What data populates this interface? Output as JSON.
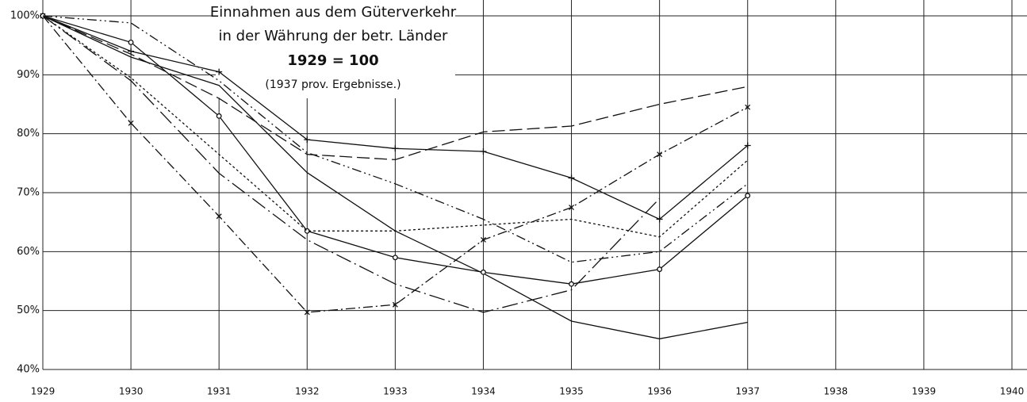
{
  "chart_data": {
    "type": "line",
    "title": "Einnahmen aus dem Güterverkehr",
    "subtitle": "in der Währung der betr. Länder",
    "annotations": [
      "1929 = 100",
      "(1937 prov. Ergebnisse.)"
    ],
    "x": [
      1929,
      1930,
      1931,
      1932,
      1933,
      1934,
      1935,
      1936,
      1937
    ],
    "xlim": [
      1929,
      1940
    ],
    "xticks": [
      1929,
      1930,
      1931,
      1932,
      1933,
      1934,
      1935,
      1936,
      1937,
      1938,
      1939,
      1940
    ],
    "ylim": [
      40,
      100
    ],
    "yticks": [
      {
        "value": 40,
        "label": "40%"
      },
      {
        "value": 50,
        "label": "50%"
      },
      {
        "value": 60,
        "label": "60%"
      },
      {
        "value": 70,
        "label": "70%"
      },
      {
        "value": 80,
        "label": "80%"
      },
      {
        "value": 90,
        "label": "90%"
      },
      {
        "value": 100,
        "label": "100%"
      }
    ],
    "grid": true,
    "series": [
      {
        "color": "#111",
        "dash": "solid",
        "marker": "none",
        "values": [
          100,
          93,
          88.2,
          73.4,
          63.5,
          56.3,
          48.2,
          45.2,
          48
        ]
      },
      {
        "color": "#111",
        "dash": "long-dash",
        "marker": "none",
        "values": [
          100,
          93.5,
          86,
          76.5,
          75.6,
          80.3,
          81.3,
          85,
          88
        ]
      },
      {
        "color": "#111",
        "dash": "solid",
        "marker": "plus",
        "values": [
          100,
          94,
          90.5,
          79,
          77.5,
          77,
          72.5,
          65.5,
          78
        ]
      },
      {
        "color": "#111",
        "dash": "dash-dot",
        "marker": "cross",
        "values": [
          100,
          81.8,
          66,
          49.7,
          51,
          62,
          67.5,
          76.5,
          84.5
        ]
      },
      {
        "color": "#111",
        "dash": "solid",
        "marker": "circle",
        "values": [
          100,
          95.5,
          83,
          63.5,
          59,
          56.5,
          54.5,
          57,
          69.5
        ]
      },
      {
        "color": "#111",
        "dash": "dotted",
        "marker": "none",
        "values": [
          100,
          89.5,
          76.5,
          63.5,
          63.5,
          64.5,
          65.5,
          62.5,
          75.5
        ]
      },
      {
        "color": "#111",
        "dash": "dash-dot-dot",
        "marker": "none",
        "values": [
          100,
          98.8,
          89,
          76.8,
          71.5,
          65.5,
          58.2,
          60,
          71.5
        ]
      },
      {
        "color": "#111",
        "dash": "long-dash-dot",
        "marker": "none",
        "values": [
          100,
          89,
          73.3,
          62,
          54.5,
          49.7,
          53.5,
          69,
          null
        ]
      }
    ]
  }
}
